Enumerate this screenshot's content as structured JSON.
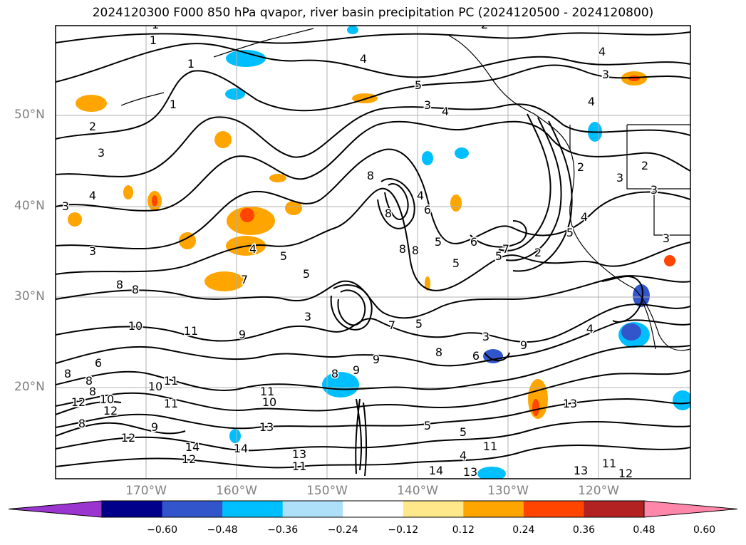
{
  "title": "2024120300 F000 850 hPa qvapor, river basin precipitation PC (2024120500 - 2024120800)",
  "lat_labels": [
    "50°N",
    "40°N",
    "30°N",
    "20°N"
  ],
  "lon_labels": [
    "170°W",
    "160°W",
    "150°W",
    "140°W",
    "130°W",
    "120°W"
  ],
  "colorbar": {
    "ticks": [
      "−0.60",
      "−0.48",
      "−0.36",
      "−0.24",
      "−0.12",
      "0.12",
      "0.24",
      "0.36",
      "0.48",
      "0.60"
    ],
    "colors": [
      "#9b35d0",
      "#00008b",
      "#3355cc",
      "#00bfff",
      "#aee0fa",
      "#ffffff",
      "#ffe88a",
      "#ffa500",
      "#ff4500",
      "#b22222",
      "#ff88aa"
    ]
  },
  "contour_labels": [
    "1",
    "1",
    "1",
    "1",
    "2",
    "2",
    "3",
    "3",
    "4",
    "4",
    "4",
    "5",
    "5",
    "3",
    "4",
    "8",
    "4",
    "4",
    "3",
    "6",
    "8",
    "6",
    "8",
    "5",
    "4",
    "7",
    "8",
    "5",
    "5",
    "2",
    "2",
    "4",
    "2",
    "3",
    "3",
    "5",
    "3",
    "3",
    "9",
    "9",
    "8",
    "8",
    "7",
    "5",
    "6",
    "8",
    "3",
    "9",
    "9",
    "10",
    "11",
    "11",
    "6",
    "8",
    "7",
    "8",
    "10",
    "11",
    "12",
    "10",
    "12",
    "13",
    "14",
    "14",
    "12",
    "13",
    "11",
    "5",
    "5",
    "4",
    "11",
    "13",
    "13",
    "14",
    "13",
    "11",
    "12",
    "8",
    "8",
    "8",
    "4",
    "3",
    "10",
    "11",
    "9",
    "12",
    "5"
  ]
}
